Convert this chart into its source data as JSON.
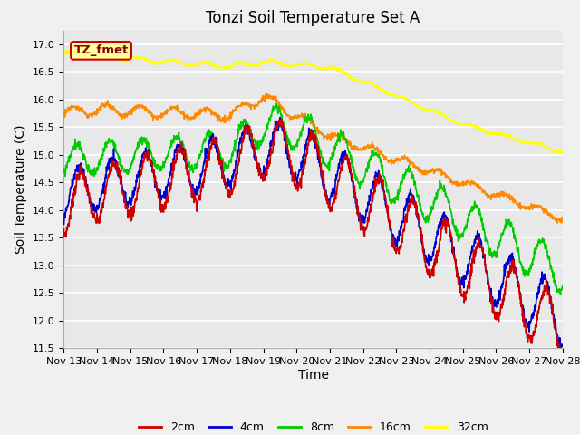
{
  "title": "Tonzi Soil Temperature Set A",
  "xlabel": "Time",
  "ylabel": "Soil Temperature (C)",
  "ylim": [
    11.5,
    17.25
  ],
  "legend_labels": [
    "2cm",
    "4cm",
    "8cm",
    "16cm",
    "32cm"
  ],
  "line_colors": [
    "#cc0000",
    "#0000cc",
    "#00cc00",
    "#ff8800",
    "#ffff00"
  ],
  "annotation_text": "TZ_fmet",
  "annotation_bg": "#ffff99",
  "annotation_border": "#cc0000",
  "title_fontsize": 12,
  "axis_label_fontsize": 10,
  "tick_fontsize": 8,
  "legend_fontsize": 9,
  "bg_color": "#e8e8e8",
  "fig_bg_color": "#f0f0f0",
  "grid_color": "#ffffff",
  "x_tick_labels": [
    "Nov 13",
    "Nov 14",
    "Nov 15",
    "Nov 16",
    "Nov 17",
    "Nov 18",
    "Nov 19",
    "Nov 20",
    "Nov 21",
    "Nov 22",
    "Nov 23",
    "Nov 24",
    "Nov 25",
    "Nov 26",
    "Nov 27",
    "Nov 28"
  ]
}
